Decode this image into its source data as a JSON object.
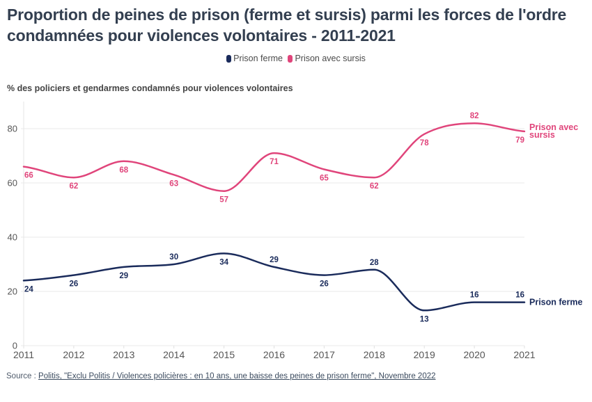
{
  "title": "Proportion de peines de prison (ferme et sursis) parmi les forces de l'ordre condamnées pour violences volontaires - 2011-2021",
  "legend": [
    {
      "label": "Prison ferme",
      "color": "#1a2b5b"
    },
    {
      "label": "Prison avec sursis",
      "color": "#e0457b"
    }
  ],
  "subtitle": "% des policiers et gendarmes condamnés pour violences volontaires",
  "source": {
    "prefix": "Source : ",
    "link_text": "Politis, \"Exclu Politis / Violences policières : en 10 ans, une baisse des peines de prison ferme\", Novembre 2022"
  },
  "chart_data": {
    "type": "line",
    "title": "Proportion de peines de prison (ferme et sursis) parmi les forces de l'ordre condamnées pour violences volontaires - 2011-2021",
    "ylabel": "% des policiers et gendarmes condamnés pour violences volontaires",
    "xlabel": "",
    "x": [
      "2011",
      "2012",
      "2013",
      "2014",
      "2015",
      "2016",
      "2017",
      "2018",
      "2019",
      "2020",
      "2021"
    ],
    "ylim": [
      0,
      90
    ],
    "yticks": [
      0,
      20,
      40,
      60,
      80
    ],
    "grid": true,
    "legend_position": "top-center",
    "series": [
      {
        "name": "Prison ferme",
        "end_label": "Prison ferme",
        "color": "#1a2b5b",
        "values": [
          24,
          26,
          29,
          30,
          34,
          29,
          26,
          28,
          13,
          16,
          16
        ]
      },
      {
        "name": "Prison avec sursis",
        "end_label": "Prison avec sursis",
        "end_label_lines": [
          "Prison avec",
          "sursis"
        ],
        "color": "#e0457b",
        "values": [
          66,
          62,
          68,
          63,
          57,
          71,
          65,
          62,
          78,
          82,
          79
        ]
      }
    ]
  }
}
